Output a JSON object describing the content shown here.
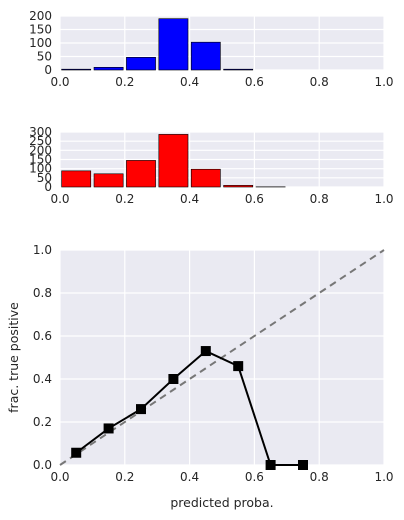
{
  "chart_data": [
    {
      "type": "bar",
      "role": "histogram-top",
      "color": "#0000ff",
      "x": [
        0.05,
        0.15,
        0.25,
        0.35,
        0.45,
        0.55,
        0.65,
        0.75,
        0.85,
        0.95
      ],
      "values": [
        3,
        10,
        47,
        190,
        103,
        3,
        0,
        0,
        0,
        0
      ],
      "bin_width": 0.1,
      "xlim": [
        0,
        1
      ],
      "ylim": [
        0,
        200
      ],
      "xticks": [
        "0.0",
        "0.2",
        "0.4",
        "0.6",
        "0.8",
        "1.0"
      ],
      "xtick_values": [
        0,
        0.2,
        0.4,
        0.6,
        0.8,
        1.0
      ],
      "yticks": [
        "0",
        "50",
        "100",
        "150",
        "200"
      ],
      "ytick_values": [
        0,
        50,
        100,
        150,
        200
      ],
      "xlabel": "",
      "ylabel": "",
      "title": ""
    },
    {
      "type": "bar",
      "role": "histogram-bottom",
      "color": "#ff0000",
      "x": [
        0.05,
        0.15,
        0.25,
        0.35,
        0.45,
        0.55,
        0.65,
        0.75,
        0.85,
        0.95
      ],
      "values": [
        88,
        72,
        145,
        287,
        97,
        9,
        1,
        0,
        0,
        0
      ],
      "bin_width": 0.1,
      "xlim": [
        0,
        1
      ],
      "ylim": [
        0,
        300
      ],
      "xticks": [
        "0.0",
        "0.2",
        "0.4",
        "0.6",
        "0.8",
        "1.0"
      ],
      "xtick_values": [
        0,
        0.2,
        0.4,
        0.6,
        0.8,
        1.0
      ],
      "yticks": [
        "0",
        "50",
        "100",
        "150",
        "200",
        "250",
        "300"
      ],
      "ytick_values": [
        0,
        50,
        100,
        150,
        200,
        250,
        300
      ],
      "xlabel": "",
      "ylabel": "",
      "title": ""
    },
    {
      "type": "line",
      "role": "calibration-curve",
      "series": [
        {
          "color": "#000000",
          "marker": "square",
          "x": [
            0.05,
            0.15,
            0.25,
            0.35,
            0.45,
            0.55,
            0.65,
            0.75
          ],
          "y": [
            0.057,
            0.17,
            0.26,
            0.4,
            0.53,
            0.46,
            0.0,
            0.0
          ]
        }
      ],
      "reference_line": {
        "x": [
          0,
          1
        ],
        "y": [
          0,
          1
        ],
        "color": "#777777",
        "style": "dashed"
      },
      "xlim": [
        0,
        1
      ],
      "ylim": [
        0,
        1
      ],
      "xticks": [
        "0.0",
        "0.2",
        "0.4",
        "0.6",
        "0.8",
        "1.0"
      ],
      "xtick_values": [
        0,
        0.2,
        0.4,
        0.6,
        0.8,
        1.0
      ],
      "yticks": [
        "0.0",
        "0.2",
        "0.4",
        "0.6",
        "0.8",
        "1.0"
      ],
      "ytick_values": [
        0,
        0.2,
        0.4,
        0.6,
        0.8,
        1.0
      ],
      "xlabel": "predicted proba.",
      "ylabel": "frac. true positive",
      "title": ""
    }
  ]
}
